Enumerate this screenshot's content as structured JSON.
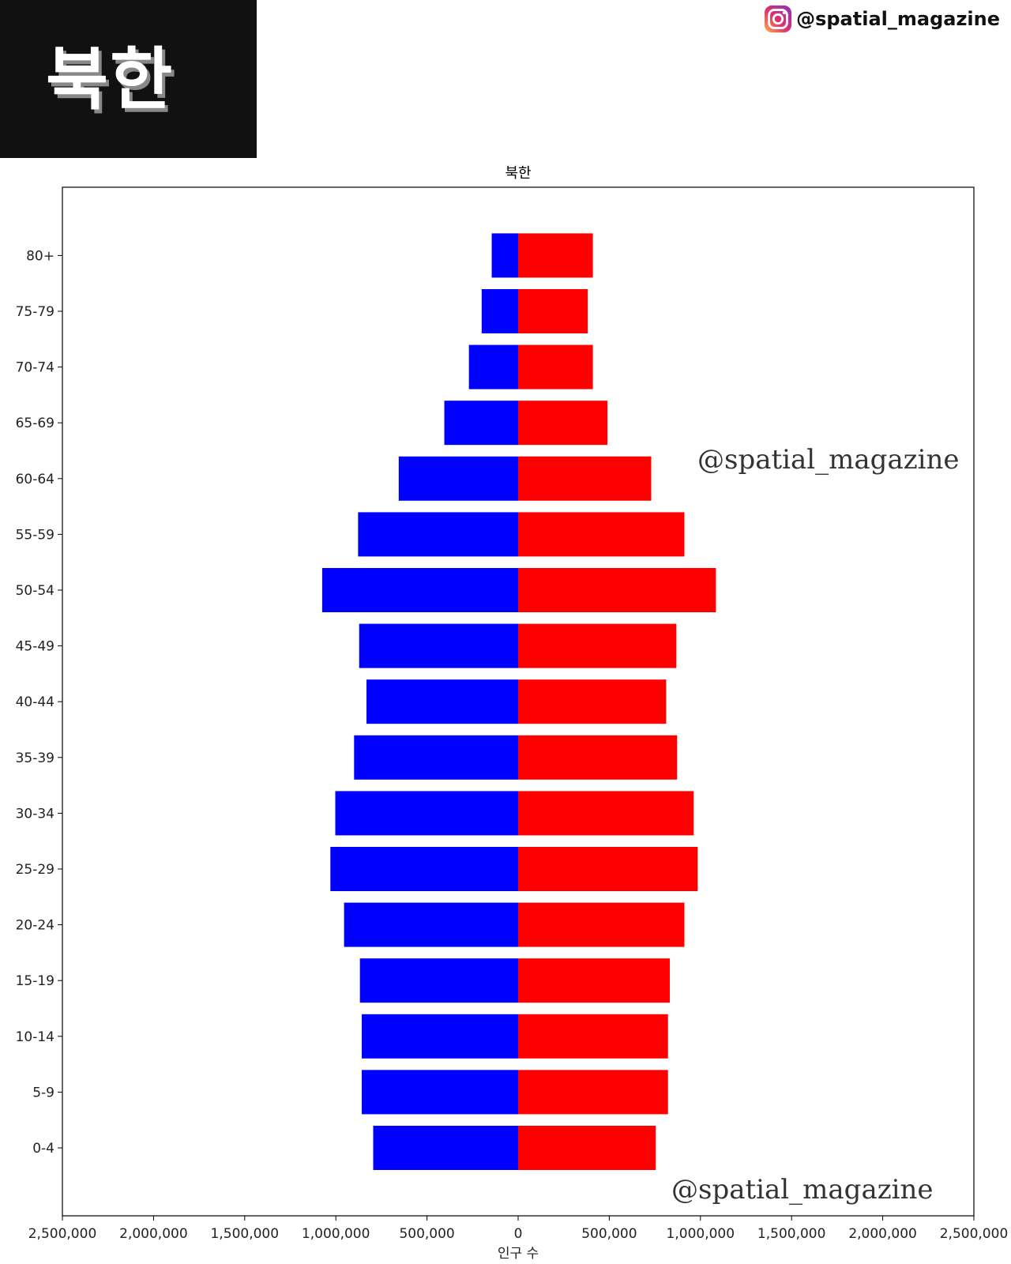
{
  "header": {
    "title": "북한",
    "handle": "@spatial_magazine"
  },
  "watermarks": [
    "@spatial_magazine",
    "@spatial_magazine"
  ],
  "colors": {
    "male": "#0000ff",
    "female": "#ff0000",
    "title_block": "#111111"
  },
  "icons": {
    "instagram": "instagram-icon"
  },
  "chart_data": {
    "type": "bar",
    "orientation": "horizontal-diverging",
    "title": "북한",
    "xlabel": "인구 수",
    "ylabel": "",
    "xlim": [
      -2500000,
      2500000
    ],
    "x_ticks": [
      -2500000,
      -2000000,
      -1500000,
      -1000000,
      -500000,
      0,
      500000,
      1000000,
      1500000,
      2000000,
      2500000
    ],
    "x_tick_labels": [
      "2,500,000",
      "2,000,000",
      "1,500,000",
      "1,000,000",
      "500,000",
      "0",
      "500,000",
      "1,000,000",
      "1,500,000",
      "2,000,000",
      "2,500,000"
    ],
    "categories": [
      "0-4",
      "5-9",
      "10-14",
      "15-19",
      "20-24",
      "25-29",
      "30-34",
      "35-39",
      "40-44",
      "45-49",
      "50-54",
      "55-59",
      "60-64",
      "65-69",
      "70-74",
      "75-79",
      "80+"
    ],
    "series": [
      {
        "color": "#0000ff",
        "side": "left",
        "values": [
          795000,
          858000,
          858000,
          868000,
          955000,
          1030000,
          1003000,
          900000,
          832000,
          872000,
          1075000,
          878000,
          655000,
          405000,
          270000,
          200000,
          145000
        ]
      },
      {
        "color": "#ff0000",
        "side": "right",
        "values": [
          755000,
          822000,
          822000,
          832000,
          912000,
          985000,
          963000,
          872000,
          812000,
          868000,
          1085000,
          912000,
          730000,
          490000,
          410000,
          382000,
          410000
        ]
      }
    ],
    "grid": false,
    "legend": "none"
  }
}
